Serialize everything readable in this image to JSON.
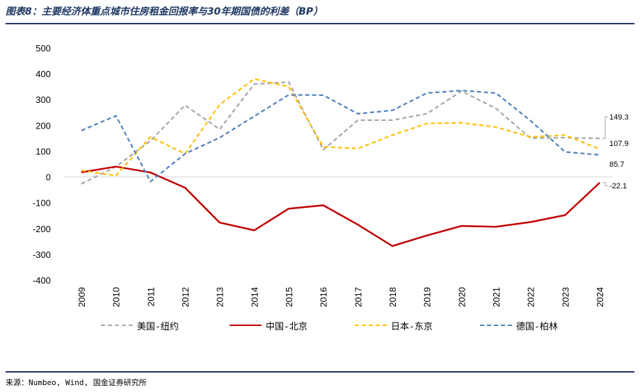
{
  "header": {
    "title": "图表8：主要经济体重点城市住房租金回报率与30年期国债的利差（BP）"
  },
  "footer": {
    "source": "来源：Numbeo, Wind, 国金证券研究所"
  },
  "chart_data": {
    "type": "line",
    "title": "图表8：主要经济体重点城市住房租金回报率与30年期国债的利差（BP）",
    "xlabel": "",
    "ylabel": "",
    "ylim": [
      -400,
      500
    ],
    "yticks": [
      500,
      400,
      300,
      200,
      100,
      0,
      -100,
      -200,
      -300,
      -400
    ],
    "categories": [
      "2009",
      "2010",
      "2011",
      "2012",
      "2013",
      "2014",
      "2015",
      "2016",
      "2017",
      "2018",
      "2019",
      "2020",
      "2021",
      "2022",
      "2023",
      "2024"
    ],
    "grid": false,
    "legend_position": "bottom",
    "series": [
      {
        "name": "美国-纽约",
        "color": "#a6a6a6",
        "dash": "dashed",
        "values": [
          -27,
          40,
          140,
          278,
          185,
          360,
          368,
          105,
          220,
          220,
          245,
          333,
          265,
          150,
          152,
          149.3
        ]
      },
      {
        "name": "中国-北京",
        "color": "#c00000",
        "dash": "solid",
        "values": [
          18,
          40,
          17,
          -42,
          -177,
          -207,
          -123,
          -110,
          -185,
          -268,
          -227,
          -190,
          -193,
          -175,
          -148,
          -22.1
        ]
      },
      {
        "name": "日本-东京",
        "color": "#ffc000",
        "dash": "dashed",
        "values": [
          25,
          5,
          155,
          90,
          280,
          380,
          350,
          117,
          110,
          162,
          207,
          210,
          193,
          155,
          162,
          107.9
        ]
      },
      {
        "name": "德国-柏林",
        "color": "#4f81bd",
        "dash": "dashed",
        "values": [
          180,
          237,
          -18,
          90,
          152,
          235,
          318,
          317,
          245,
          258,
          325,
          335,
          325,
          218,
          97,
          85.7
        ]
      }
    ],
    "end_labels": [
      "149.3",
      "107.9",
      "85.7",
      "-22.1"
    ]
  }
}
